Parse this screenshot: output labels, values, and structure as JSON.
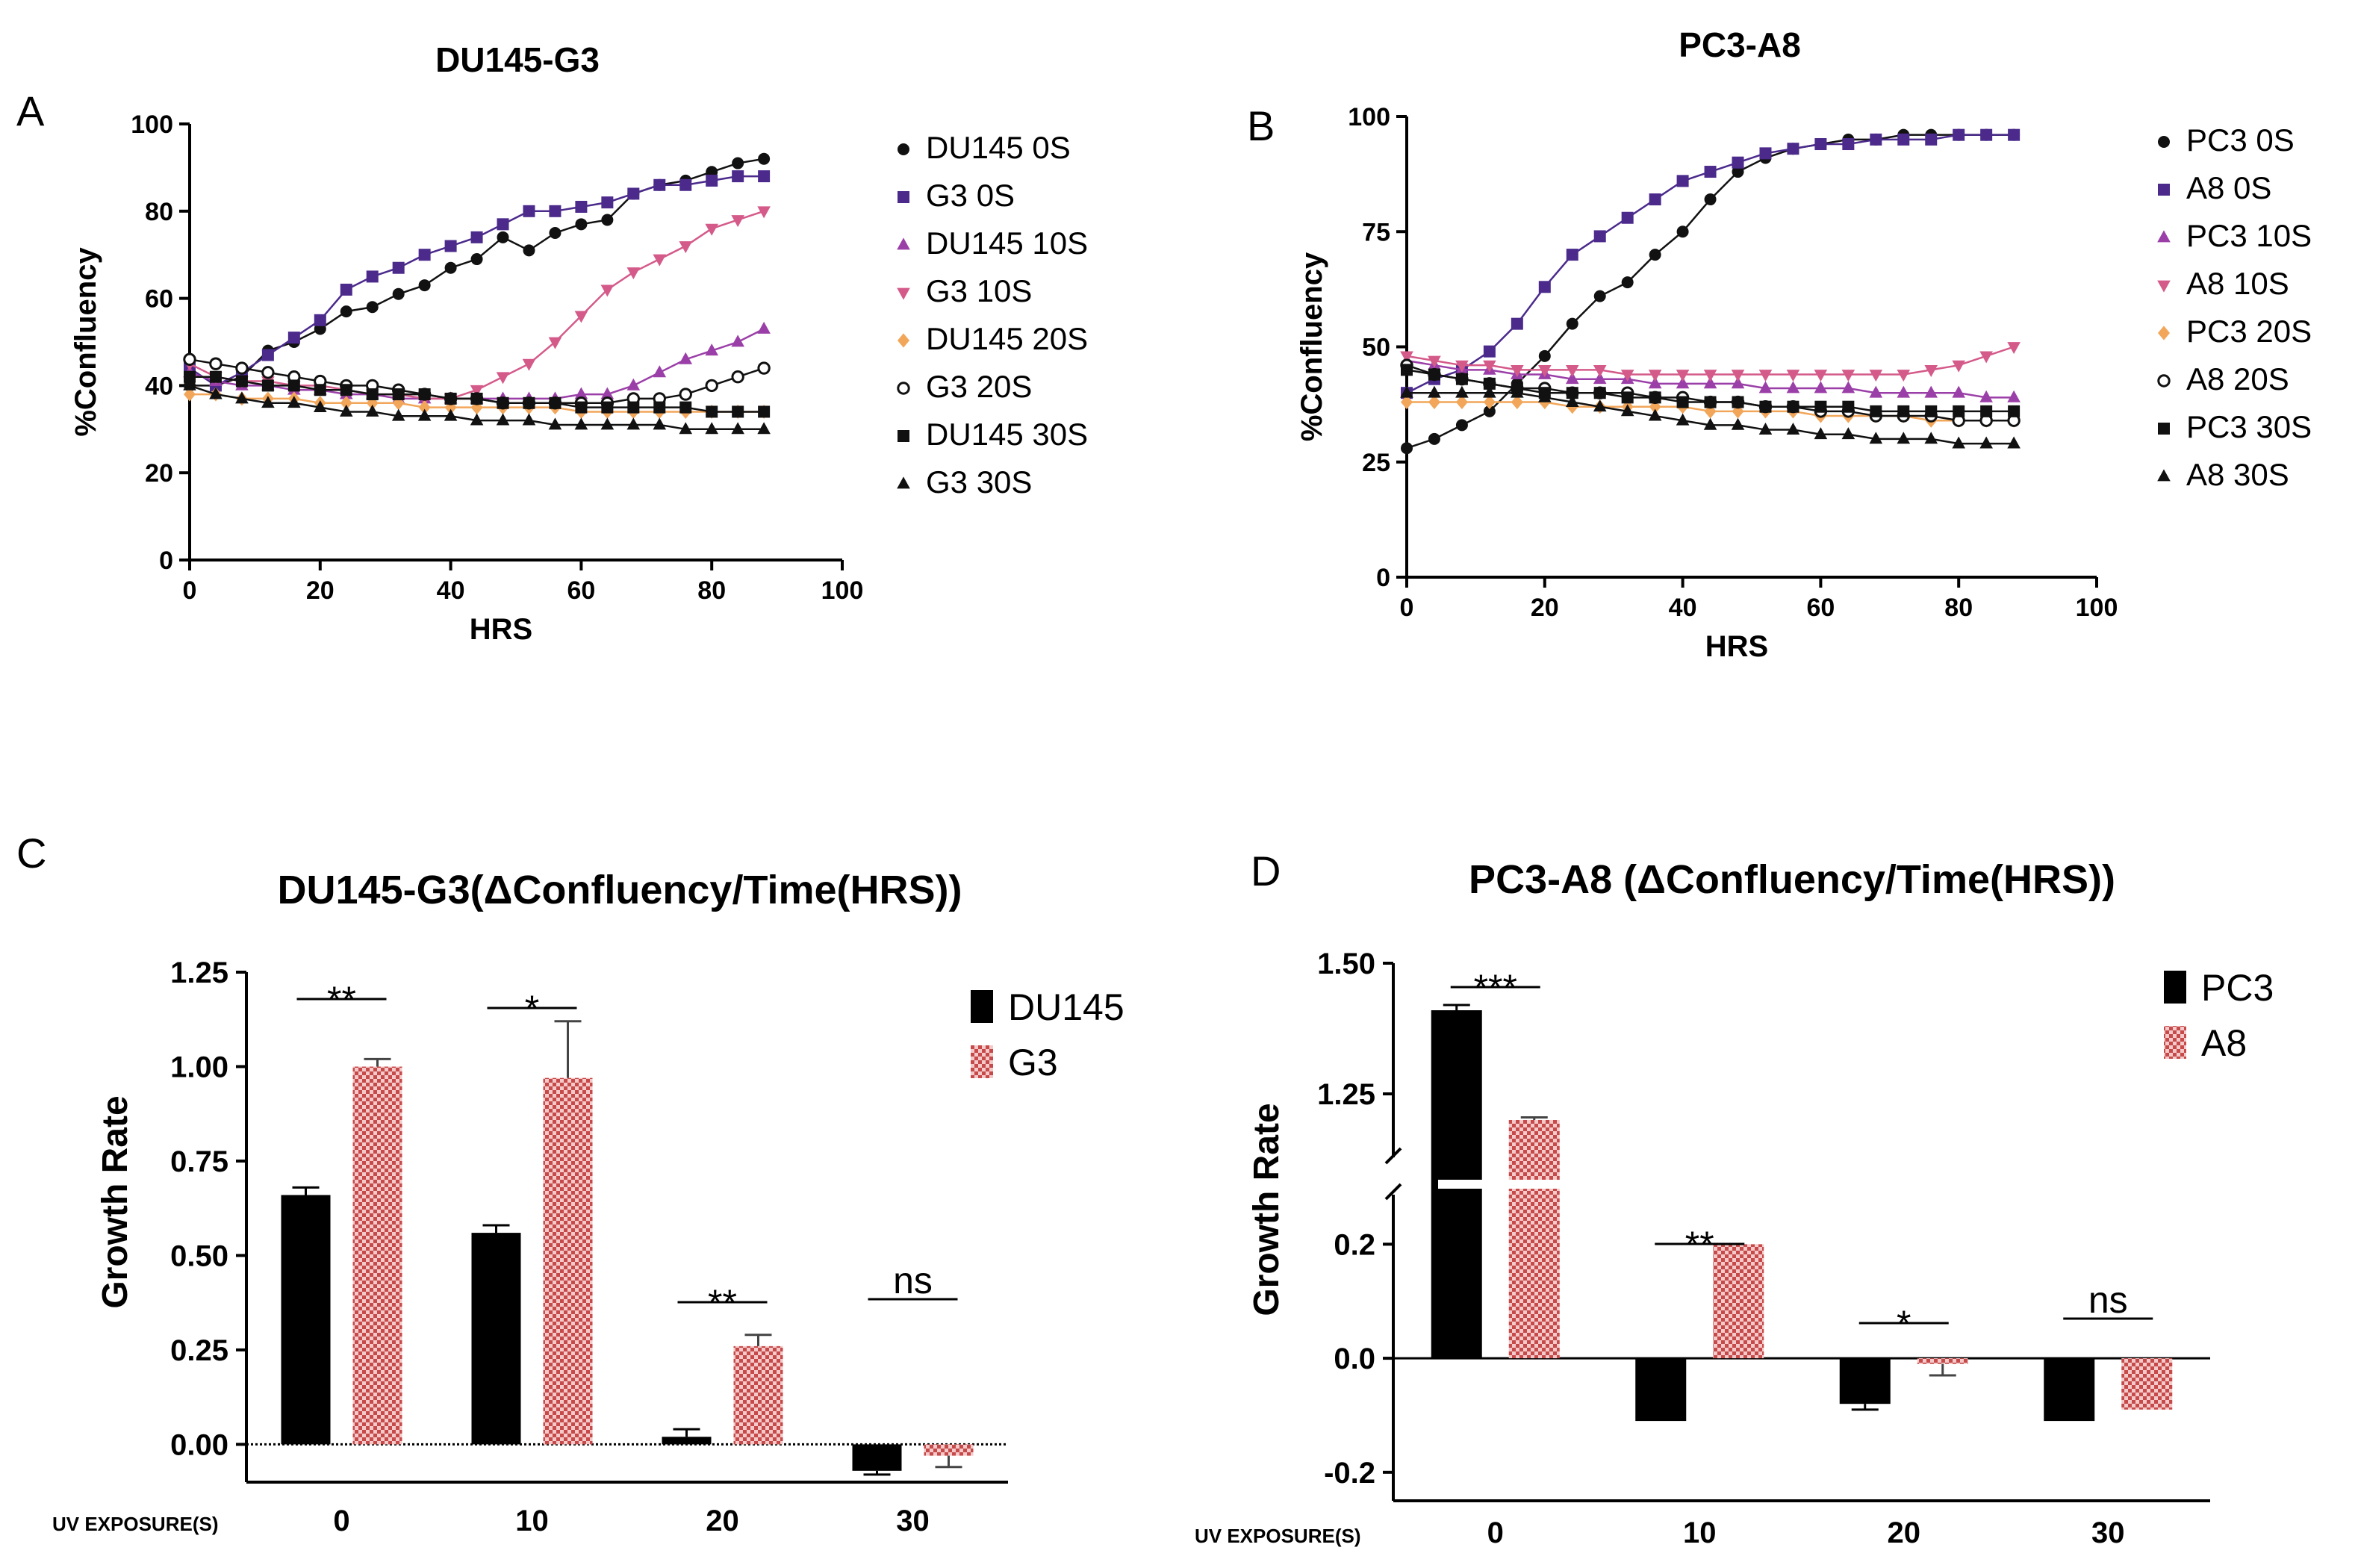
{
  "chart_data": [
    {
      "panel": "A",
      "type": "line",
      "title": "DU145-G3",
      "xlabel": "HRS",
      "ylabel": "%Confluency",
      "xlim": [
        0,
        100
      ],
      "ylim": [
        0,
        100
      ],
      "xticks": [
        "0",
        "20",
        "40",
        "60",
        "80",
        "100"
      ],
      "yticks": [
        "0",
        "20",
        "40",
        "60",
        "80",
        "100"
      ],
      "x": [
        0,
        4,
        8,
        12,
        16,
        20,
        24,
        28,
        32,
        36,
        40,
        44,
        48,
        52,
        56,
        60,
        64,
        68,
        72,
        76,
        80,
        84,
        88
      ],
      "legend_position": "right",
      "series": [
        {
          "name": "DU145 0S",
          "color": "#111111",
          "marker": "circle",
          "values": [
            40,
            40,
            42,
            48,
            50,
            53,
            57,
            58,
            61,
            63,
            67,
            69,
            74,
            71,
            75,
            77,
            78,
            84,
            86,
            87,
            89,
            91,
            92
          ]
        },
        {
          "name": "G3 0S",
          "color": "#4b2a8c",
          "marker": "square",
          "values": [
            44,
            40,
            43,
            47,
            51,
            55,
            62,
            65,
            67,
            70,
            72,
            74,
            77,
            80,
            80,
            81,
            82,
            84,
            86,
            86,
            87,
            88,
            88
          ]
        },
        {
          "name": "DU145 10S",
          "color": "#9b3fa8",
          "marker": "triangle",
          "values": [
            43,
            41,
            40,
            40,
            39,
            39,
            38,
            38,
            37,
            37,
            37,
            37,
            37,
            37,
            37,
            38,
            38,
            40,
            43,
            46,
            48,
            50,
            53
          ]
        },
        {
          "name": "G3 10S",
          "color": "#d45a8a",
          "marker": "triangle-down",
          "values": [
            45,
            42,
            41,
            41,
            40,
            40,
            39,
            38,
            38,
            37,
            37,
            39,
            42,
            45,
            50,
            56,
            62,
            66,
            69,
            72,
            76,
            78,
            80
          ]
        },
        {
          "name": "DU145 20S",
          "color": "#f2a65a",
          "marker": "diamond",
          "values": [
            38,
            38,
            37,
            37,
            37,
            36,
            36,
            36,
            36,
            35,
            35,
            35,
            35,
            35,
            35,
            34,
            34,
            34,
            34,
            34,
            34,
            34,
            34
          ]
        },
        {
          "name": "G3 20S",
          "color": "#111111",
          "marker": "circle-open",
          "values": [
            46,
            45,
            44,
            43,
            42,
            41,
            40,
            40,
            39,
            38,
            37,
            37,
            36,
            36,
            36,
            36,
            36,
            37,
            37,
            38,
            40,
            42,
            44
          ]
        },
        {
          "name": "DU145 30S",
          "color": "#111111",
          "marker": "square",
          "values": [
            42,
            42,
            41,
            40,
            40,
            39,
            39,
            38,
            38,
            38,
            37,
            37,
            36,
            36,
            36,
            35,
            35,
            35,
            35,
            35,
            34,
            34,
            34
          ]
        },
        {
          "name": "G3 30S",
          "color": "#111111",
          "marker": "triangle",
          "values": [
            40,
            38,
            37,
            36,
            36,
            35,
            34,
            34,
            33,
            33,
            33,
            32,
            32,
            32,
            31,
            31,
            31,
            31,
            31,
            30,
            30,
            30,
            30
          ]
        }
      ]
    },
    {
      "panel": "B",
      "type": "line",
      "title": "PC3-A8",
      "xlabel": "HRS",
      "ylabel": "%Confluency",
      "xlim": [
        0,
        100
      ],
      "ylim": [
        0,
        100
      ],
      "xticks": [
        "0",
        "20",
        "40",
        "60",
        "80",
        "100"
      ],
      "yticks": [
        "0",
        "25",
        "50",
        "75",
        "100"
      ],
      "x": [
        0,
        4,
        8,
        12,
        16,
        20,
        24,
        28,
        32,
        36,
        40,
        44,
        48,
        52,
        56,
        60,
        64,
        68,
        72,
        76,
        80,
        84,
        88
      ],
      "legend_position": "right",
      "series": [
        {
          "name": "PC3 0S",
          "color": "#111111",
          "marker": "circle",
          "values": [
            28,
            30,
            33,
            36,
            42,
            48,
            55,
            61,
            64,
            70,
            75,
            82,
            88,
            91,
            93,
            94,
            95,
            95,
            96,
            96,
            96,
            96,
            96
          ]
        },
        {
          "name": "A8 0S",
          "color": "#4b2a8c",
          "marker": "square",
          "values": [
            40,
            43,
            45,
            49,
            55,
            63,
            70,
            74,
            78,
            82,
            86,
            88,
            90,
            92,
            93,
            94,
            94,
            95,
            95,
            95,
            96,
            96,
            96
          ]
        },
        {
          "name": "PC3 10S",
          "color": "#9b3fa8",
          "marker": "triangle",
          "values": [
            47,
            46,
            45,
            45,
            44,
            44,
            43,
            43,
            43,
            42,
            42,
            42,
            42,
            41,
            41,
            41,
            41,
            40,
            40,
            40,
            40,
            39,
            39
          ]
        },
        {
          "name": "A8 10S",
          "color": "#d45a8a",
          "marker": "triangle-down",
          "values": [
            48,
            47,
            46,
            46,
            45,
            45,
            45,
            45,
            44,
            44,
            44,
            44,
            44,
            44,
            44,
            44,
            44,
            44,
            44,
            45,
            46,
            48,
            50
          ]
        },
        {
          "name": "PC3 20S",
          "color": "#f2a65a",
          "marker": "diamond",
          "values": [
            38,
            38,
            38,
            38,
            38,
            38,
            37,
            37,
            37,
            37,
            37,
            36,
            36,
            36,
            36,
            35,
            35,
            35,
            35,
            34,
            34,
            34,
            34
          ]
        },
        {
          "name": "A8 20S",
          "color": "#111111",
          "marker": "circle-open",
          "values": [
            46,
            44,
            43,
            42,
            41,
            41,
            40,
            40,
            40,
            39,
            39,
            38,
            38,
            37,
            37,
            36,
            36,
            35,
            35,
            35,
            34,
            34,
            34
          ]
        },
        {
          "name": "PC3 30S",
          "color": "#111111",
          "marker": "square",
          "values": [
            45,
            44,
            43,
            42,
            41,
            40,
            40,
            40,
            39,
            39,
            38,
            38,
            38,
            37,
            37,
            37,
            37,
            36,
            36,
            36,
            36,
            36,
            36
          ]
        },
        {
          "name": "A8 30S",
          "color": "#111111",
          "marker": "triangle",
          "values": [
            40,
            40,
            40,
            40,
            40,
            39,
            38,
            37,
            36,
            35,
            34,
            33,
            33,
            32,
            32,
            31,
            31,
            30,
            30,
            30,
            29,
            29,
            29
          ]
        }
      ]
    },
    {
      "panel": "C",
      "type": "bar",
      "title": "DU145-G3(ΔConfluency/Time(HRS))",
      "xlabel": "UV EXPOSURE(S)",
      "ylabel": "Growth Rate",
      "categories": [
        "0",
        "10",
        "20",
        "30"
      ],
      "ylim": [
        -0.1,
        1.25
      ],
      "yticks": [
        "0.00",
        "0.25",
        "0.50",
        "0.75",
        "1.00",
        "1.25"
      ],
      "legend_position": "top-right",
      "series": [
        {
          "name": "DU145",
          "color": "#000000",
          "pattern": "solid",
          "values": [
            0.66,
            0.56,
            0.02,
            -0.07
          ],
          "errors": [
            0.02,
            0.02,
            0.02,
            0.01
          ]
        },
        {
          "name": "G3",
          "color": "#c64a4a",
          "pattern": "checker",
          "values": [
            1.0,
            0.97,
            0.26,
            -0.03
          ],
          "errors": [
            0.02,
            0.15,
            0.03,
            0.03
          ]
        }
      ],
      "significance": [
        "**",
        "*",
        "**",
        "ns"
      ]
    },
    {
      "panel": "D",
      "type": "bar",
      "title": "PC3-A8 (ΔConfluency/Time(HRS))",
      "xlabel": "UV EXPOSURE(S)",
      "ylabel": "Growth Rate",
      "categories": [
        "0",
        "10",
        "20",
        "30"
      ],
      "axis_break": true,
      "ylim_lower": [
        -0.25,
        0.3
      ],
      "ylim_upper": [
        1.1,
        1.5
      ],
      "yticks": [
        "-0.2",
        "0.0",
        "0.2",
        "1.25",
        "1.50"
      ],
      "legend_position": "top-right",
      "series": [
        {
          "name": "PC3",
          "color": "#000000",
          "pattern": "solid",
          "values": [
            1.41,
            -0.11,
            -0.08,
            -0.11
          ],
          "errors": [
            0.01,
            0.0,
            0.01,
            0.0
          ]
        },
        {
          "name": "A8",
          "color": "#c64a4a",
          "pattern": "checker",
          "values": [
            1.2,
            0.2,
            -0.01,
            -0.09
          ],
          "errors": [
            0.005,
            0.0,
            0.02,
            0.0
          ]
        }
      ],
      "significance": [
        "***",
        "**",
        "*",
        "ns"
      ]
    }
  ],
  "labels": {
    "A": "A",
    "B": "B",
    "C": "C",
    "D": "D"
  }
}
